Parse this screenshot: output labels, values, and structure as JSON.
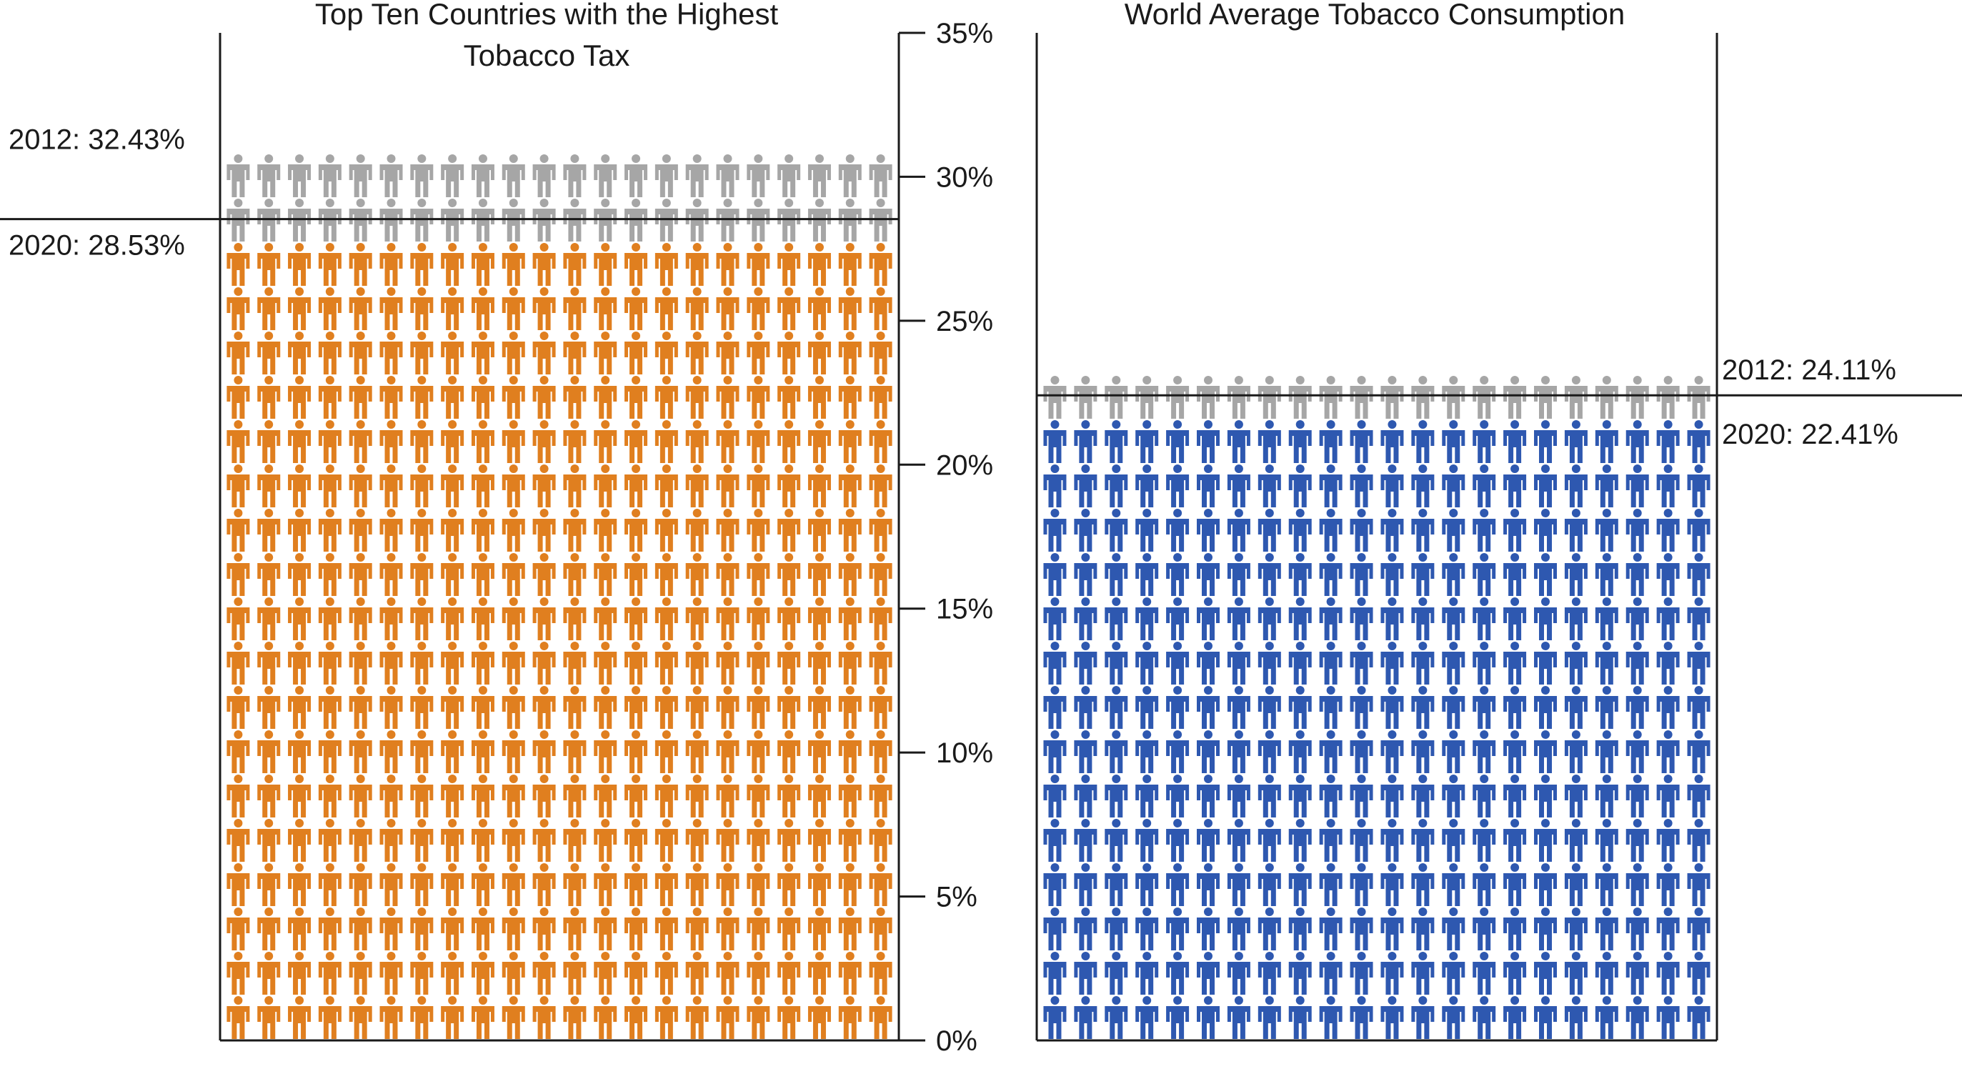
{
  "chart_data": {
    "type": "pictogram-bar",
    "unit": "%",
    "axis": {
      "min": 0,
      "max": 35,
      "step": 5,
      "tick_labels": [
        "0%",
        "5%",
        "10%",
        "15%",
        "20%",
        "25%",
        "30%",
        "35%"
      ]
    },
    "years": [
      "2012",
      "2020"
    ],
    "panels": [
      {
        "title_lines": [
          "Top Ten Countries with the Highest",
          "Tobacco Tax"
        ],
        "values": [
          32.43,
          28.53
        ],
        "annotations": [
          "2012:  32.43%",
          "2020:  28.53%"
        ],
        "colors": [
          "#a6a6a6",
          "#e07f1f"
        ],
        "label_side": "left"
      },
      {
        "title_lines": [
          "World Average Tobacco Consumption"
        ],
        "values": [
          24.11,
          22.41
        ],
        "annotations": [
          "2012:  24.11%",
          "2020:  22.41%"
        ],
        "colors": [
          "#a6a6a6",
          "#2e58b0"
        ],
        "label_side": "right"
      }
    ]
  }
}
